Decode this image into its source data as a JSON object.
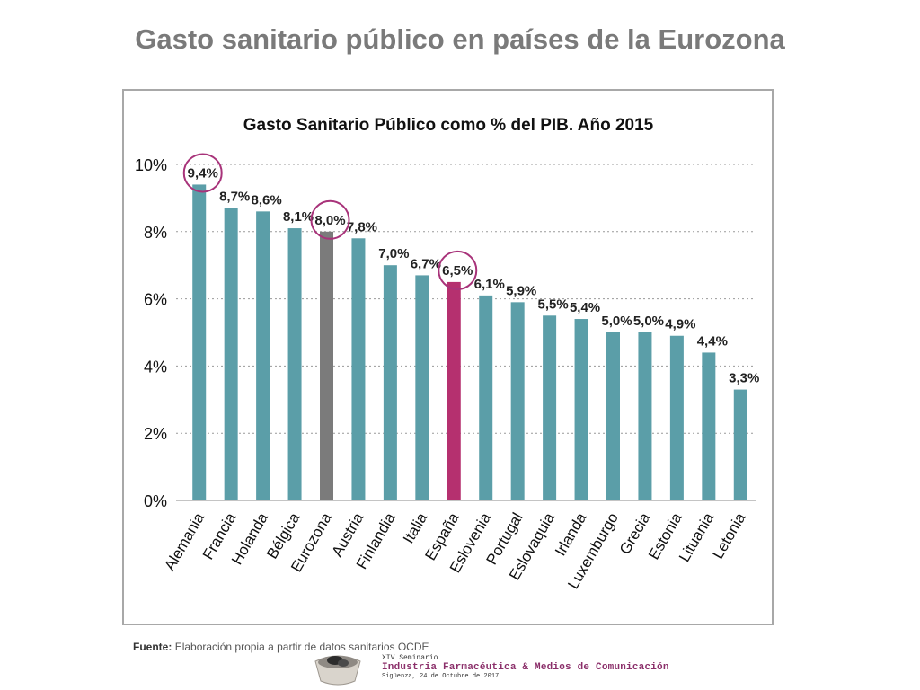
{
  "slide": {
    "title": "Gasto sanitario público en países de la Eurozona",
    "source_label": "Fuente:",
    "source_text": "Elaboración propia a partir de datos sanitarios OCDE",
    "footer": {
      "line1": "XIV Seminario",
      "line2": "Industria Farmacéutica & Medios de Comunicación",
      "line3": "Sigüenza, 24 de Octubre de 2017"
    }
  },
  "chart_data": {
    "type": "bar",
    "title": "Gasto Sanitario Público como % del PIB. Año 2015",
    "xlabel": "",
    "ylabel": "",
    "ylim": [
      0,
      10
    ],
    "yticks": [
      "0%",
      "2%",
      "4%",
      "6%",
      "8%",
      "10%"
    ],
    "grid": true,
    "categories": [
      "Alemania",
      "Francia",
      "Holanda",
      "Bélgica",
      "Eurozona",
      "Austria",
      "Finlandia",
      "Italia",
      "España",
      "Eslovenia",
      "Portugal",
      "Eslovaquia",
      "Irlanda",
      "Luxemburgo",
      "Grecia",
      "Estonia",
      "Lituania",
      "Letonia"
    ],
    "values": [
      9.4,
      8.7,
      8.6,
      8.1,
      8.0,
      7.8,
      7.0,
      6.7,
      6.5,
      6.1,
      5.9,
      5.5,
      5.4,
      5.0,
      5.0,
      4.9,
      4.4,
      3.3
    ],
    "labels": [
      "9,4%",
      "8,7%",
      "8,6%",
      "8,1%",
      "8,0%",
      "7,8%",
      "7,0%",
      "6,7%",
      "6,5%",
      "6,1%",
      "5,9%",
      "5,5%",
      "5,4%",
      "5,0%",
      "5,0%",
      "4,9%",
      "4,4%",
      "3,3%"
    ],
    "colors": {
      "default": "#5b9ea8",
      "Eurozona": "#7b7b7b",
      "España": "#b5306f",
      "highlight_circle": "#a8337a"
    },
    "highlighted": [
      "Alemania",
      "Eurozona",
      "España"
    ]
  }
}
